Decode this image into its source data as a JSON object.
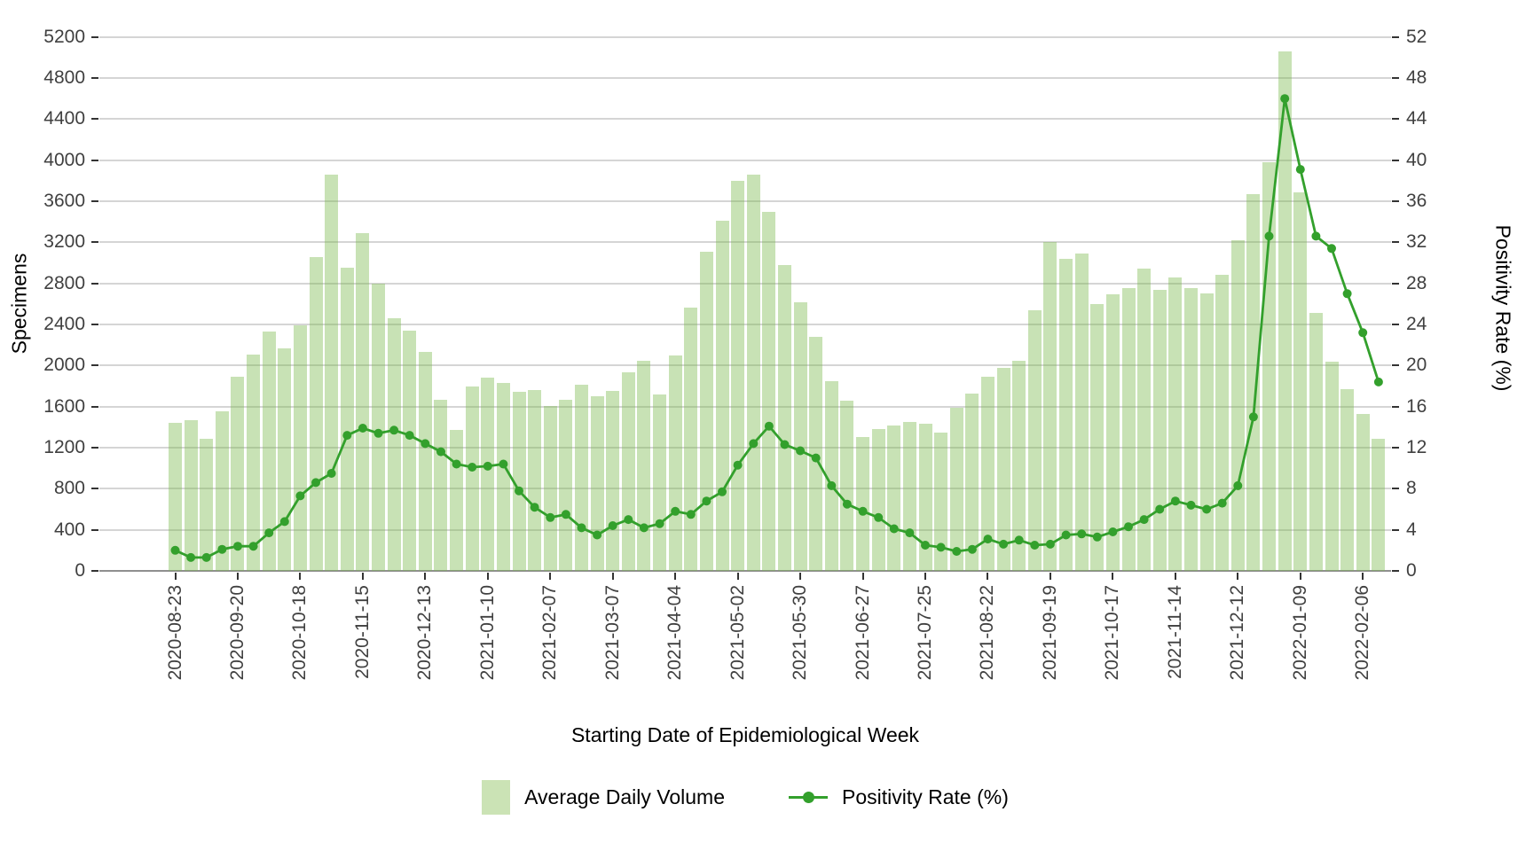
{
  "chart_data": {
    "type": "bar",
    "title": "",
    "xlabel": "Starting Date of Epidemiological Week",
    "ylabel_left": "Specimens",
    "ylabel_right": "Positivity Rate (%)",
    "ylim_left": [
      0,
      5200
    ],
    "ylim_right": [
      0,
      52
    ],
    "yticks_left": [
      0,
      400,
      800,
      1200,
      1600,
      2000,
      2400,
      2800,
      3200,
      3600,
      4000,
      4400,
      4800,
      5200
    ],
    "yticks_right": [
      0,
      4,
      8,
      12,
      16,
      20,
      24,
      28,
      32,
      36,
      40,
      44,
      48,
      52
    ],
    "grid": "horizontal only, light gray, white background",
    "legend_position": "bottom",
    "x_tick_labels": [
      "2020-08-23",
      "2020-09-20",
      "2020-10-18",
      "2020-11-15",
      "2020-12-13",
      "2021-01-10",
      "2021-02-07",
      "2021-03-07",
      "2021-04-04",
      "2021-05-02",
      "2021-05-30",
      "2021-06-27",
      "2021-07-25",
      "2021-08-22",
      "2021-09-19",
      "2021-10-17",
      "2021-11-14",
      "2021-12-12",
      "2022-01-09",
      "2022-02-06"
    ],
    "x_dates": [
      "2020-08-23",
      "2020-08-30",
      "2020-09-06",
      "2020-09-13",
      "2020-09-20",
      "2020-09-27",
      "2020-10-04",
      "2020-10-11",
      "2020-10-18",
      "2020-10-25",
      "2020-11-01",
      "2020-11-08",
      "2020-11-15",
      "2020-11-22",
      "2020-11-29",
      "2020-12-06",
      "2020-12-13",
      "2020-12-20",
      "2020-12-27",
      "2021-01-03",
      "2021-01-10",
      "2021-01-17",
      "2021-01-24",
      "2021-01-31",
      "2021-02-07",
      "2021-02-14",
      "2021-02-21",
      "2021-02-28",
      "2021-03-07",
      "2021-03-14",
      "2021-03-21",
      "2021-03-28",
      "2021-04-04",
      "2021-04-11",
      "2021-04-18",
      "2021-04-25",
      "2021-05-02",
      "2021-05-09",
      "2021-05-16",
      "2021-05-23",
      "2021-05-30",
      "2021-06-06",
      "2021-06-13",
      "2021-06-20",
      "2021-06-27",
      "2021-07-04",
      "2021-07-11",
      "2021-07-18",
      "2021-07-25",
      "2021-08-01",
      "2021-08-08",
      "2021-08-15",
      "2021-08-22",
      "2021-08-29",
      "2021-09-05",
      "2021-09-12",
      "2021-09-19",
      "2021-09-26",
      "2021-10-03",
      "2021-10-10",
      "2021-10-17",
      "2021-10-24",
      "2021-10-31",
      "2021-11-07",
      "2021-11-14",
      "2021-11-21",
      "2021-11-28",
      "2021-12-05",
      "2021-12-12",
      "2021-12-19",
      "2021-12-26",
      "2022-01-02",
      "2022-01-09",
      "2022-01-16",
      "2022-01-23",
      "2022-01-30",
      "2022-02-06",
      "2022-02-13"
    ],
    "series": [
      {
        "name": "Average Daily Volume",
        "type": "bar",
        "axis": "left",
        "color": "#cbe3b5",
        "values": [
          1440,
          1470,
          1290,
          1550,
          1890,
          2110,
          2330,
          2170,
          2390,
          3060,
          3860,
          2950,
          3290,
          2800,
          2460,
          2340,
          2130,
          1670,
          1370,
          1800,
          1880,
          1830,
          1740,
          1760,
          1610,
          1670,
          1810,
          1700,
          1750,
          1930,
          2050,
          1720,
          2100,
          2560,
          3110,
          3410,
          3800,
          3860,
          3500,
          2980,
          2620,
          2280,
          1850,
          1660,
          1300,
          1380,
          1420,
          1450,
          1430,
          1350,
          1590,
          1730,
          1890,
          1980,
          2050,
          2540,
          3200,
          3040,
          3090,
          2600,
          2690,
          2750,
          2940,
          2740,
          2860,
          2750,
          2700,
          2880,
          3220,
          3670,
          3980,
          5060,
          3690,
          2510,
          2040,
          1770,
          1530,
          1290
        ]
      },
      {
        "name": "Positivity Rate (%)",
        "type": "line",
        "axis": "right",
        "color": "#33a02c",
        "values": [
          2.0,
          1.3,
          1.3,
          2.1,
          2.4,
          2.4,
          3.7,
          4.8,
          7.3,
          8.6,
          9.5,
          13.2,
          13.9,
          13.4,
          13.7,
          13.2,
          12.4,
          11.6,
          10.4,
          10.1,
          10.2,
          10.4,
          7.8,
          6.2,
          5.2,
          5.5,
          4.2,
          3.5,
          4.4,
          5.0,
          4.2,
          4.6,
          5.8,
          5.5,
          6.8,
          7.7,
          10.3,
          12.4,
          14.1,
          12.3,
          11.7,
          11.0,
          8.3,
          6.5,
          5.8,
          5.2,
          4.1,
          3.7,
          2.5,
          2.3,
          1.9,
          2.1,
          3.1,
          2.6,
          3.0,
          2.5,
          2.6,
          3.5,
          3.6,
          3.3,
          3.8,
          4.3,
          5.0,
          6.0,
          6.8,
          6.4,
          6.0,
          6.6,
          8.3,
          15.0,
          32.6,
          46.0,
          39.1,
          32.6,
          31.4,
          27.0,
          23.2,
          18.4
        ]
      }
    ]
  },
  "legend": {
    "items": [
      {
        "label": "Average Daily Volume",
        "symbol": "filled-square",
        "color": "#cbe3b5"
      },
      {
        "label": "Positivity Rate (%)",
        "symbol": "line-with-dot",
        "color": "#33a02c"
      }
    ]
  },
  "colors": {
    "bar_fill": "#cbe3b5",
    "line": "#33a02c",
    "gridline": "#d5d5d5",
    "axis_line": "#8f8f8f",
    "tick_text": "#404040",
    "background": "#ffffff"
  }
}
